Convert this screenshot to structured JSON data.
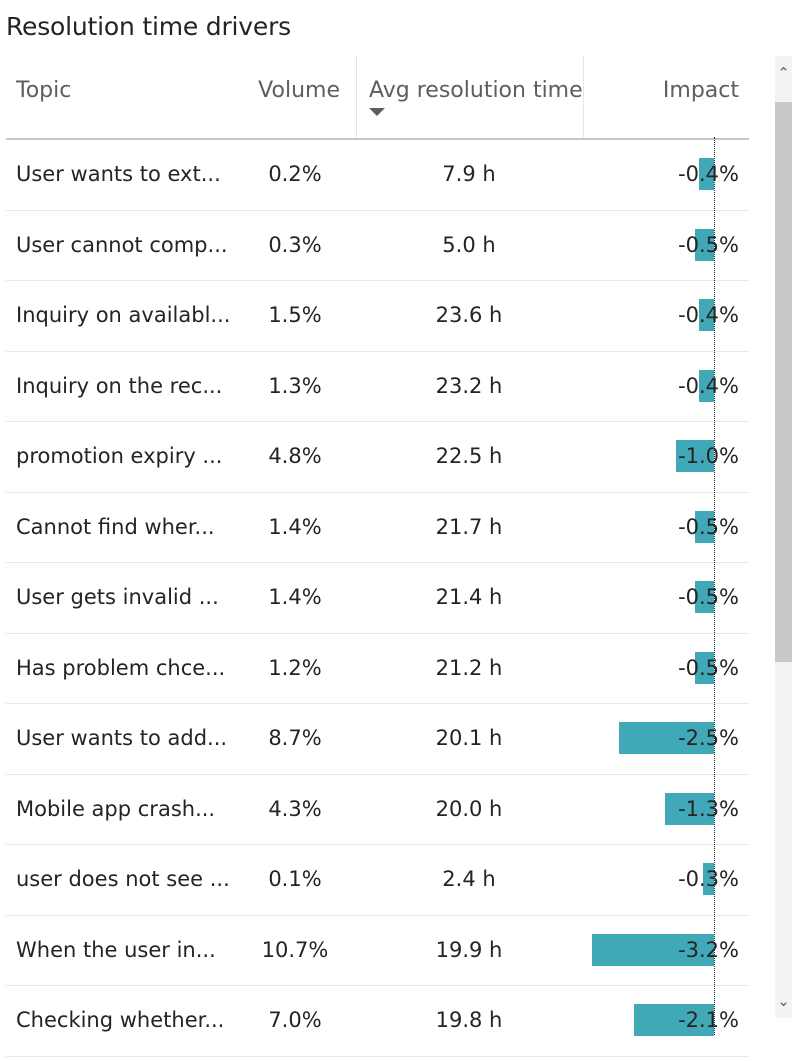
{
  "title": "Resolution time drivers",
  "columns": {
    "topic": "Topic",
    "volume": "Volume",
    "avg": "Avg resolution time",
    "impact": "Impact"
  },
  "sort_icon": "triangle-down-icon",
  "bar_color": "#41a8b8",
  "rows": [
    {
      "topic": "User wants to ext...",
      "volume": "0.2%",
      "avg": "7.9 h",
      "impact": "-0.4%",
      "impact_value": -0.4
    },
    {
      "topic": "User cannot comp...",
      "volume": "0.3%",
      "avg": "5.0 h",
      "impact": "-0.5%",
      "impact_value": -0.5
    },
    {
      "topic": "Inquiry on availabl...",
      "volume": "1.5%",
      "avg": "23.6 h",
      "impact": "-0.4%",
      "impact_value": -0.4
    },
    {
      "topic": "Inquiry on the rec...",
      "volume": "1.3%",
      "avg": "23.2 h",
      "impact": "-0.4%",
      "impact_value": -0.4
    },
    {
      "topic": "promotion expiry ...",
      "volume": "4.8%",
      "avg": "22.5 h",
      "impact": "-1.0%",
      "impact_value": -1.0
    },
    {
      "topic": "Cannot find wher...",
      "volume": "1.4%",
      "avg": "21.7 h",
      "impact": "-0.5%",
      "impact_value": -0.5
    },
    {
      "topic": "User gets invalid ...",
      "volume": "1.4%",
      "avg": "21.4 h",
      "impact": "-0.5%",
      "impact_value": -0.5
    },
    {
      "topic": "Has problem chce...",
      "volume": "1.2%",
      "avg": "21.2 h",
      "impact": "-0.5%",
      "impact_value": -0.5
    },
    {
      "topic": "User wants to add...",
      "volume": "8.7%",
      "avg": "20.1 h",
      "impact": "-2.5%",
      "impact_value": -2.5
    },
    {
      "topic": "Mobile app crash...",
      "volume": "4.3%",
      "avg": "20.0 h",
      "impact": "-1.3%",
      "impact_value": -1.3
    },
    {
      "topic": "user does not see ...",
      "volume": "0.1%",
      "avg": "2.4 h",
      "impact": "-0.3%",
      "impact_value": -0.3
    },
    {
      "topic": "When the user in...",
      "volume": "10.7%",
      "avg": "19.9 h",
      "impact": "-3.2%",
      "impact_value": -3.2
    },
    {
      "topic": "Checking whether...",
      "volume": "7.0%",
      "avg": "19.8 h",
      "impact": "-2.1%",
      "impact_value": -2.1
    }
  ],
  "scrollbar": {
    "up_icon": "chevron-up-icon",
    "down_icon": "chevron-down-icon"
  }
}
